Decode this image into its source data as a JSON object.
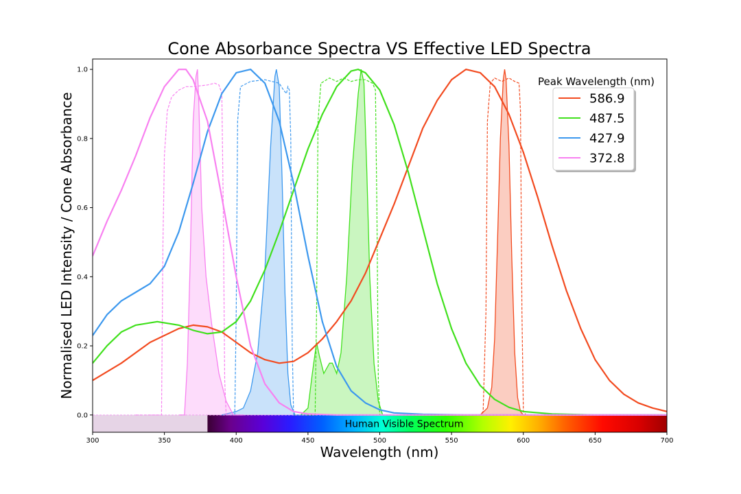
{
  "chart_data": {
    "type": "line",
    "title": "Cone Absorbance Spectra VS Effective LED Spectra",
    "xlabel": "Wavelength (nm)",
    "ylabel": "Normalised LED Intensity / Cone Absorbance",
    "xlim": [
      300,
      700
    ],
    "ylim": [
      -0.05,
      1.03
    ],
    "xticks": [
      300,
      350,
      400,
      450,
      500,
      550,
      600,
      650,
      700
    ],
    "yticks": [
      0.0,
      0.2,
      0.4,
      0.6,
      0.8,
      1.0
    ],
    "xtick_labels": [
      "300",
      "350",
      "400",
      "450",
      "500",
      "550",
      "600",
      "650",
      "700"
    ],
    "ytick_labels": [
      "0.0",
      "0.2",
      "0.4",
      "0.6",
      "0.8",
      "1.0"
    ],
    "grid": false,
    "legend": {
      "title": "Peak Wavelength (nm)",
      "placement": "top-right",
      "entries": [
        {
          "label": "586.9",
          "color": "#f24a1f"
        },
        {
          "label": "487.5",
          "color": "#40e01c"
        },
        {
          "label": "427.9",
          "color": "#3c98ee"
        },
        {
          "label": "372.8",
          "color": "#f880f0"
        }
      ]
    },
    "band_label": "Human Visible Spectrum",
    "visible_range": [
      380,
      700
    ],
    "cone_absorbance": [
      {
        "color": "#f24a1f",
        "points": [
          [
            300,
            0.1
          ],
          [
            320,
            0.15
          ],
          [
            340,
            0.21
          ],
          [
            360,
            0.25
          ],
          [
            370,
            0.26
          ],
          [
            380,
            0.255
          ],
          [
            390,
            0.24
          ],
          [
            400,
            0.21
          ],
          [
            410,
            0.18
          ],
          [
            420,
            0.16
          ],
          [
            430,
            0.15
          ],
          [
            440,
            0.155
          ],
          [
            450,
            0.18
          ],
          [
            460,
            0.22
          ],
          [
            470,
            0.27
          ],
          [
            480,
            0.33
          ],
          [
            490,
            0.41
          ],
          [
            500,
            0.51
          ],
          [
            510,
            0.61
          ],
          [
            520,
            0.72
          ],
          [
            530,
            0.83
          ],
          [
            540,
            0.91
          ],
          [
            550,
            0.97
          ],
          [
            560,
            1.0
          ],
          [
            570,
            0.99
          ],
          [
            580,
            0.95
          ],
          [
            590,
            0.87
          ],
          [
            600,
            0.76
          ],
          [
            610,
            0.63
          ],
          [
            620,
            0.49
          ],
          [
            630,
            0.36
          ],
          [
            640,
            0.25
          ],
          [
            650,
            0.16
          ],
          [
            660,
            0.1
          ],
          [
            670,
            0.06
          ],
          [
            680,
            0.035
          ],
          [
            690,
            0.02
          ],
          [
            700,
            0.01
          ]
        ]
      },
      {
        "color": "#40e01c",
        "points": [
          [
            300,
            0.15
          ],
          [
            310,
            0.2
          ],
          [
            320,
            0.24
          ],
          [
            330,
            0.26
          ],
          [
            345,
            0.27
          ],
          [
            360,
            0.26
          ],
          [
            370,
            0.245
          ],
          [
            380,
            0.235
          ],
          [
            390,
            0.24
          ],
          [
            400,
            0.27
          ],
          [
            410,
            0.33
          ],
          [
            420,
            0.42
          ],
          [
            430,
            0.53
          ],
          [
            440,
            0.65
          ],
          [
            450,
            0.77
          ],
          [
            460,
            0.87
          ],
          [
            470,
            0.95
          ],
          [
            480,
            0.995
          ],
          [
            485,
            1.0
          ],
          [
            490,
            0.99
          ],
          [
            500,
            0.94
          ],
          [
            510,
            0.84
          ],
          [
            520,
            0.7
          ],
          [
            530,
            0.54
          ],
          [
            540,
            0.38
          ],
          [
            550,
            0.25
          ],
          [
            560,
            0.15
          ],
          [
            570,
            0.085
          ],
          [
            580,
            0.045
          ],
          [
            590,
            0.022
          ],
          [
            600,
            0.01
          ],
          [
            620,
            0.003
          ],
          [
            650,
            0.0
          ],
          [
            700,
            0.0
          ]
        ]
      },
      {
        "color": "#3c98ee",
        "points": [
          [
            300,
            0.23
          ],
          [
            310,
            0.29
          ],
          [
            320,
            0.33
          ],
          [
            330,
            0.355
          ],
          [
            340,
            0.38
          ],
          [
            350,
            0.43
          ],
          [
            360,
            0.53
          ],
          [
            370,
            0.67
          ],
          [
            380,
            0.82
          ],
          [
            390,
            0.93
          ],
          [
            400,
            0.99
          ],
          [
            410,
            1.0
          ],
          [
            420,
            0.96
          ],
          [
            430,
            0.85
          ],
          [
            440,
            0.67
          ],
          [
            450,
            0.46
          ],
          [
            460,
            0.27
          ],
          [
            470,
            0.14
          ],
          [
            480,
            0.07
          ],
          [
            490,
            0.035
          ],
          [
            500,
            0.015
          ],
          [
            510,
            0.006
          ],
          [
            530,
            0.002
          ],
          [
            560,
            0.0
          ],
          [
            700,
            0.0
          ]
        ]
      },
      {
        "color": "#f880f0",
        "points": [
          [
            300,
            0.46
          ],
          [
            310,
            0.56
          ],
          [
            320,
            0.65
          ],
          [
            330,
            0.75
          ],
          [
            340,
            0.86
          ],
          [
            350,
            0.95
          ],
          [
            360,
            1.0
          ],
          [
            365,
            1.0
          ],
          [
            370,
            0.97
          ],
          [
            380,
            0.85
          ],
          [
            390,
            0.63
          ],
          [
            400,
            0.4
          ],
          [
            410,
            0.2
          ],
          [
            420,
            0.09
          ],
          [
            430,
            0.035
          ],
          [
            440,
            0.01
          ],
          [
            450,
            0.003
          ],
          [
            470,
            0.0
          ],
          [
            700,
            0.0
          ]
        ]
      }
    ],
    "led_spectra": [
      {
        "color": "#f24a1f",
        "points": [
          [
            560,
            0.0
          ],
          [
            570,
            0.0
          ],
          [
            575,
            0.02
          ],
          [
            578,
            0.08
          ],
          [
            580,
            0.22
          ],
          [
            582,
            0.5
          ],
          [
            584,
            0.8
          ],
          [
            586,
            0.97
          ],
          [
            587,
            1.0
          ],
          [
            588,
            0.97
          ],
          [
            590,
            0.78
          ],
          [
            592,
            0.45
          ],
          [
            594,
            0.18
          ],
          [
            596,
            0.05
          ],
          [
            598,
            0.01
          ],
          [
            600,
            0.0
          ],
          [
            610,
            0.0
          ]
        ]
      },
      {
        "color": "#40e01c",
        "points": [
          [
            445,
            0.0
          ],
          [
            450,
            0.02
          ],
          [
            453,
            0.12
          ],
          [
            456,
            0.21
          ],
          [
            458,
            0.17
          ],
          [
            461,
            0.12
          ],
          [
            465,
            0.15
          ],
          [
            467,
            0.15
          ],
          [
            470,
            0.12
          ],
          [
            473,
            0.18
          ],
          [
            477,
            0.4
          ],
          [
            481,
            0.72
          ],
          [
            485,
            0.93
          ],
          [
            487,
            1.0
          ],
          [
            489,
            0.96
          ],
          [
            491,
            0.7
          ],
          [
            493,
            0.4
          ],
          [
            496,
            0.15
          ],
          [
            499,
            0.04
          ],
          [
            502,
            0.0
          ],
          [
            510,
            0.0
          ]
        ]
      },
      {
        "color": "#3c98ee",
        "points": [
          [
            390,
            0.0
          ],
          [
            400,
            0.01
          ],
          [
            405,
            0.02
          ],
          [
            410,
            0.07
          ],
          [
            415,
            0.18
          ],
          [
            420,
            0.42
          ],
          [
            424,
            0.78
          ],
          [
            427,
            0.98
          ],
          [
            428,
            1.0
          ],
          [
            430,
            0.95
          ],
          [
            432,
            0.68
          ],
          [
            434,
            0.35
          ],
          [
            436,
            0.12
          ],
          [
            438,
            0.03
          ],
          [
            441,
            0.0
          ],
          [
            450,
            0.0
          ]
        ]
      },
      {
        "color": "#f880f0",
        "points": [
          [
            360,
            0.0
          ],
          [
            364,
            0.0
          ],
          [
            366,
            0.15
          ],
          [
            368,
            0.45
          ],
          [
            370,
            0.85
          ],
          [
            372,
            0.98
          ],
          [
            373,
            1.0
          ],
          [
            374,
            0.9
          ],
          [
            376,
            0.6
          ],
          [
            379,
            0.4
          ],
          [
            383,
            0.26
          ],
          [
            388,
            0.12
          ],
          [
            393,
            0.04
          ],
          [
            398,
            0.0
          ],
          [
            405,
            0.0
          ]
        ]
      }
    ],
    "filter_transmission": [
      {
        "color": "#f24a1f",
        "points": [
          [
            560,
            0.0
          ],
          [
            570,
            0.0
          ],
          [
            572,
            0.01
          ],
          [
            574,
            0.3
          ],
          [
            575,
            0.85
          ],
          [
            577,
            0.96
          ],
          [
            580,
            0.975
          ],
          [
            585,
            0.965
          ],
          [
            590,
            0.975
          ],
          [
            594,
            0.965
          ],
          [
            597,
            0.96
          ],
          [
            598,
            0.88
          ],
          [
            599,
            0.3
          ],
          [
            600,
            0.01
          ],
          [
            602,
            0.0
          ],
          [
            700,
            0.0
          ]
        ]
      },
      {
        "color": "#40e01c",
        "points": [
          [
            440,
            0.0
          ],
          [
            455,
            0.0
          ],
          [
            456,
            0.3
          ],
          [
            457,
            0.85
          ],
          [
            459,
            0.96
          ],
          [
            465,
            0.975
          ],
          [
            470,
            0.965
          ],
          [
            475,
            0.975
          ],
          [
            480,
            0.965
          ],
          [
            485,
            0.97
          ],
          [
            490,
            0.97
          ],
          [
            495,
            0.96
          ],
          [
            497,
            0.94
          ],
          [
            498,
            0.6
          ],
          [
            499,
            0.1
          ],
          [
            500,
            0.0
          ],
          [
            520,
            0.0
          ]
        ]
      },
      {
        "color": "#3c98ee",
        "points": [
          [
            390,
            0.0
          ],
          [
            399,
            0.0
          ],
          [
            400,
            0.3
          ],
          [
            401,
            0.85
          ],
          [
            403,
            0.95
          ],
          [
            410,
            0.965
          ],
          [
            420,
            0.97
          ],
          [
            430,
            0.96
          ],
          [
            433,
            0.94
          ],
          [
            435,
            0.93
          ],
          [
            436,
            0.95
          ],
          [
            437,
            0.94
          ],
          [
            438,
            0.8
          ],
          [
            439,
            0.2
          ],
          [
            440,
            0.0
          ],
          [
            450,
            0.0
          ]
        ]
      },
      {
        "color": "#f880f0",
        "points": [
          [
            330,
            0.0
          ],
          [
            348,
            0.0
          ],
          [
            349,
            0.5
          ],
          [
            350,
            0.75
          ],
          [
            352,
            0.88
          ],
          [
            355,
            0.92
          ],
          [
            360,
            0.94
          ],
          [
            365,
            0.95
          ],
          [
            370,
            0.95
          ],
          [
            380,
            0.955
          ],
          [
            385,
            0.96
          ],
          [
            388,
            0.955
          ],
          [
            390,
            0.93
          ],
          [
            391,
            0.6
          ],
          [
            392,
            0.1
          ],
          [
            393,
            0.0
          ],
          [
            400,
            0.0
          ]
        ]
      }
    ]
  }
}
